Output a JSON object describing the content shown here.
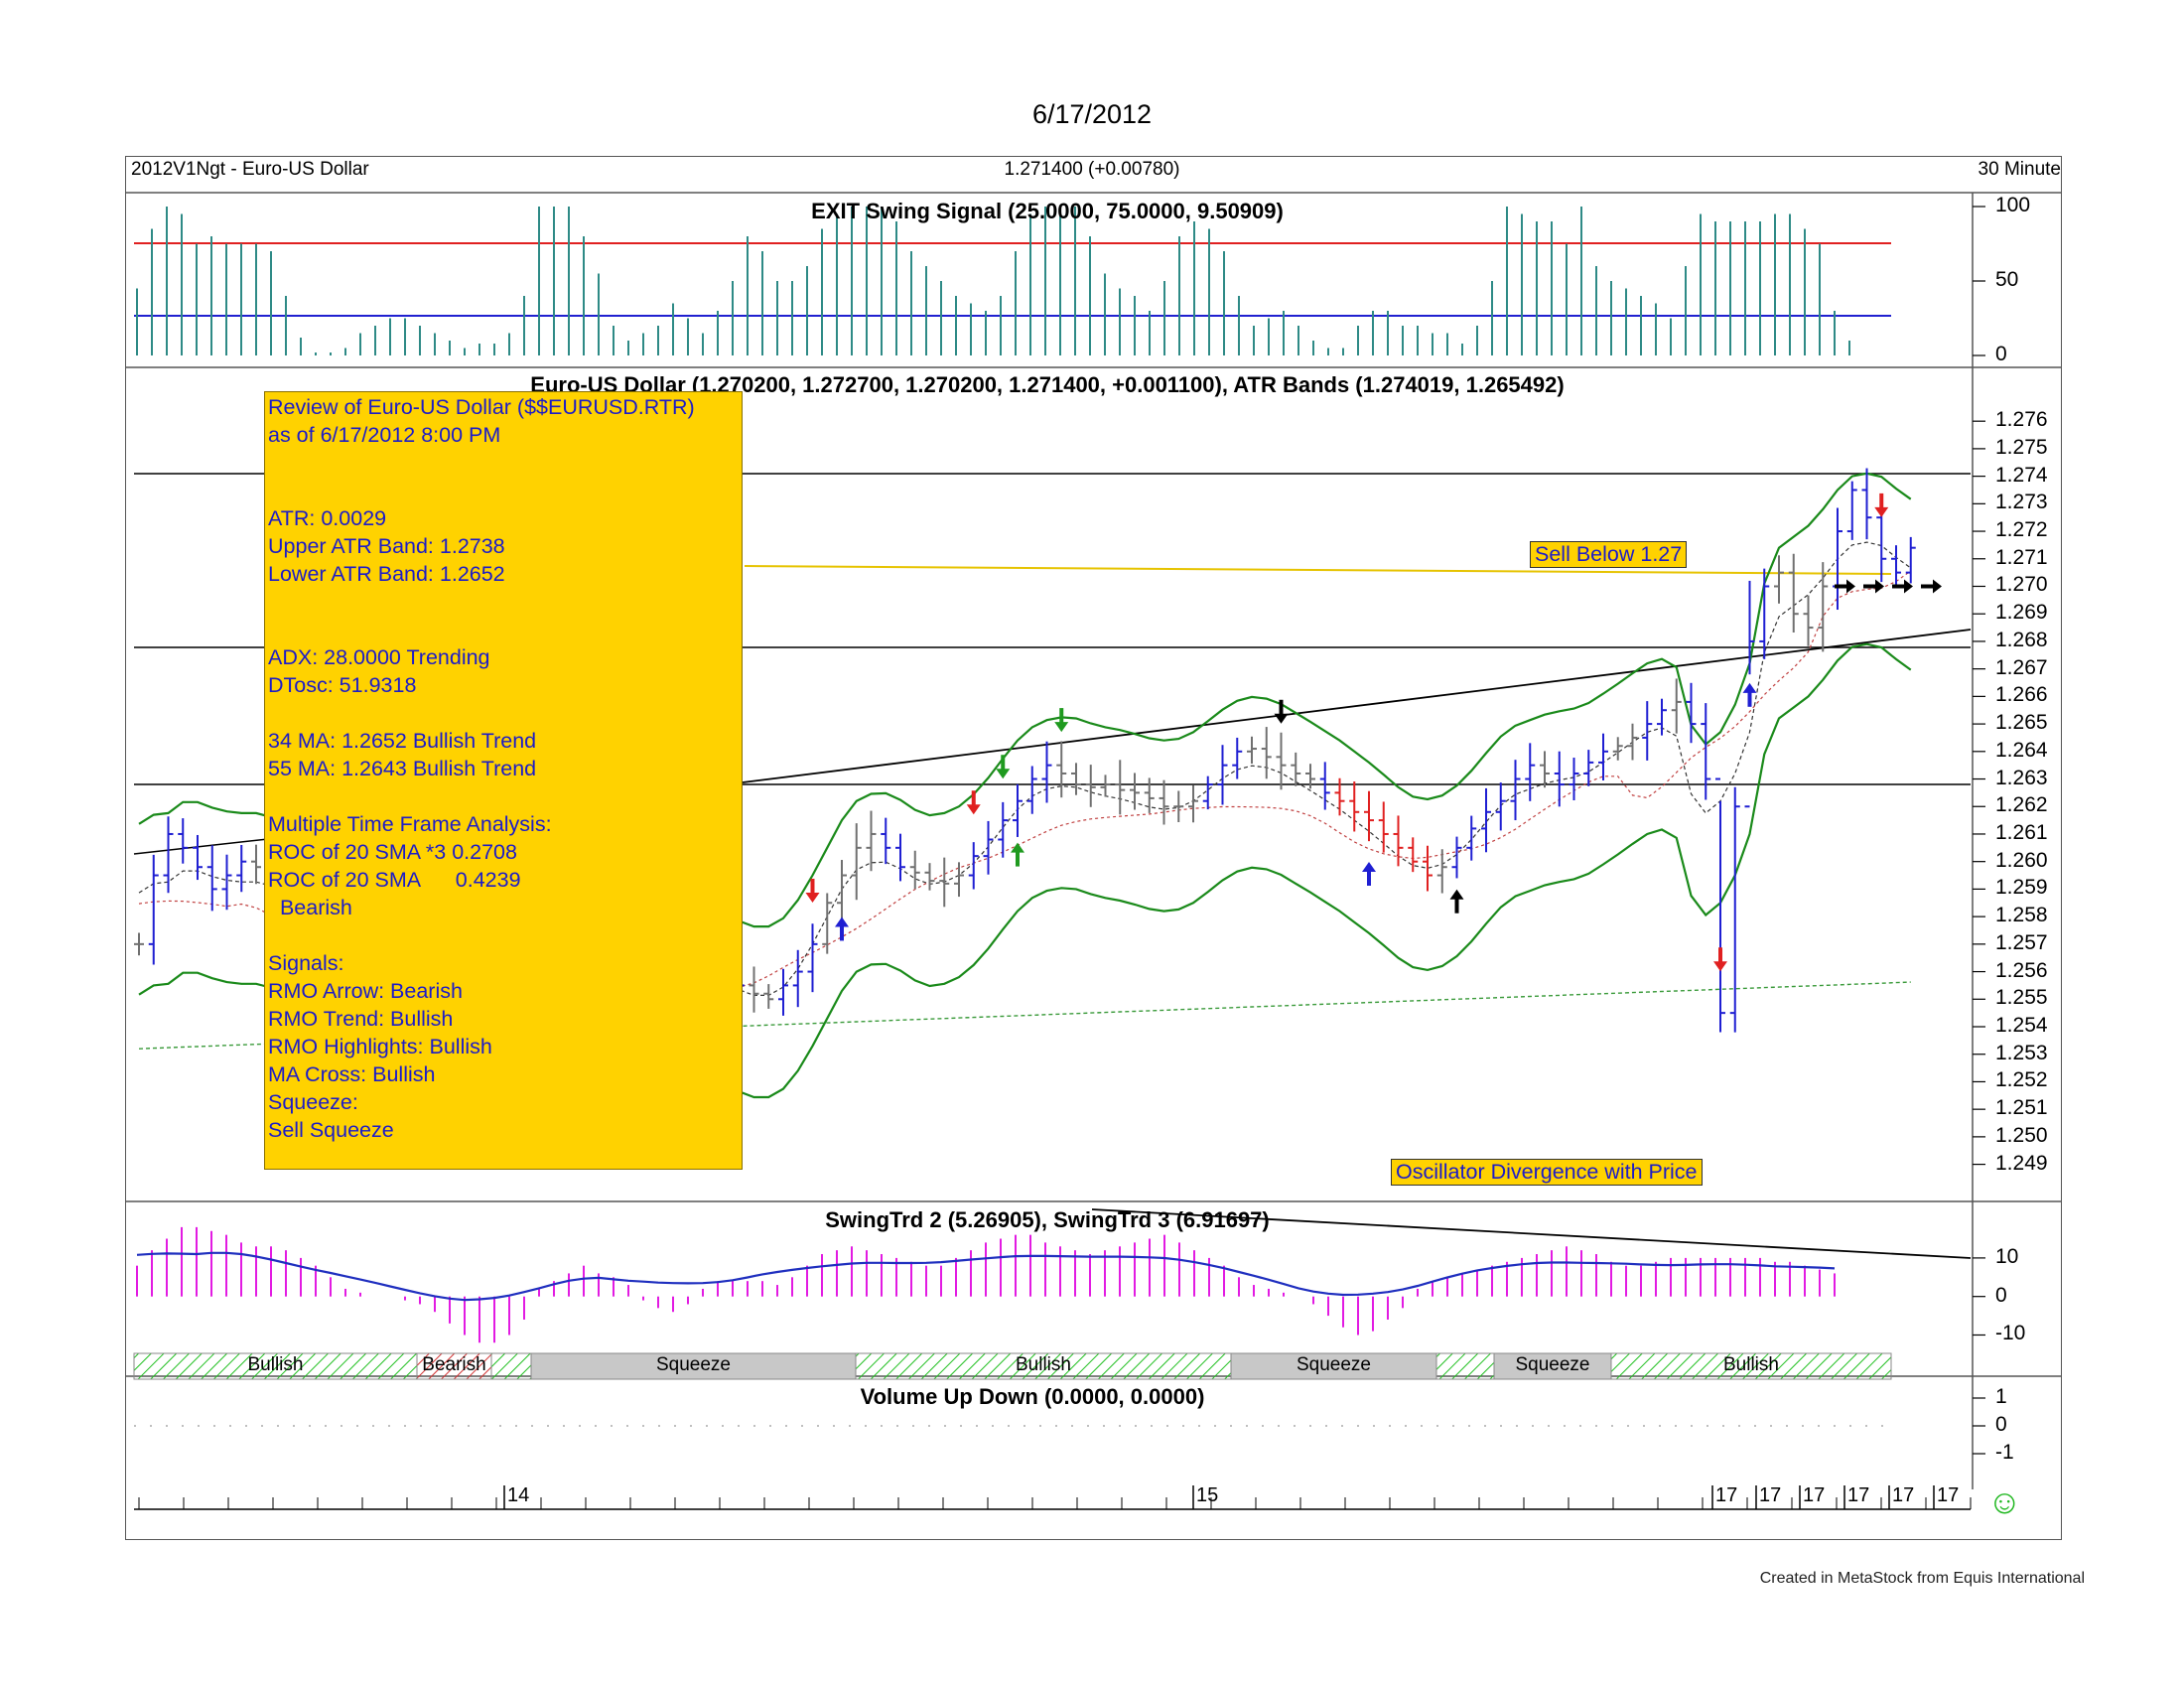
{
  "page_title": "6/17/2012",
  "header": {
    "left": "2012V1Ngt - Euro-US Dollar",
    "center": "1.271400 (+0.00780)",
    "right": "30 Minute"
  },
  "panels": {
    "exit": {
      "title": "EXIT Swing Signal (25.0000, 75.0000, 9.50909)"
    },
    "price": {
      "title": "Euro-US Dollar (1.270200, 1.272700, 1.270200, 1.271400, +0.001100), ATR Bands (1.274019, 1.265492)"
    },
    "swing": {
      "title": "SwingTrd 2 (5.26905), SwingTrd 3 (6.91697)"
    },
    "volume": {
      "title": "Volume Up Down (0.0000, 0.0000)"
    }
  },
  "info_box": {
    "lines": [
      "Review of Euro-US Dollar ($$EURUSD.RTR)",
      "as of 6/17/2012 8:00 PM",
      "",
      "",
      "ATR: 0.0029",
      "Upper ATR Band: 1.2738",
      "Lower ATR Band: 1.2652",
      "",
      "",
      "ADX: 28.0000 Trending",
      "DTosc: 51.9318",
      "",
      "34 MA: 1.2652 Bullish Trend",
      "55 MA: 1.2643 Bullish Trend",
      "",
      "Multiple Time Frame Analysis:",
      "ROC of 20 SMA *3 0.2708",
      "ROC of 20 SMA      0.4239",
      "  Bearish",
      "",
      "Signals:",
      "RMO Arrow: Bearish",
      "RMO Trend: Bullish",
      "RMO Highlights: Bullish",
      "MA Cross: Bullish",
      "Squeeze:",
      "Sell Squeeze"
    ]
  },
  "callouts": {
    "sell_below": "Sell Below 1.27",
    "divergence": "Oscillator Divergence with Price"
  },
  "footer": "Created in MetaStock from Equis International",
  "smiley": "☺",
  "colors": {
    "info_box_bg": "#FFD200",
    "text_blue": "#1c1cc8",
    "bar_up": "#1f1fd2",
    "bar_down": "#e02020",
    "bar_neutral": "#707070",
    "atr_band": "#1a8a1a",
    "exit_bar": "#2e8a86",
    "swing_hist": "#e21be2",
    "swing_line": "#1f2fbf",
    "hatch": "#1fbf1f",
    "squeeze_fill": "#c8c8c8",
    "ma_line": "#e6c300"
  },
  "chart_data": [
    {
      "type": "bar",
      "name": "EXIT Swing Signal",
      "y_ticks": [
        100,
        50,
        0
      ],
      "ylim": [
        0,
        100
      ],
      "levels": [
        75,
        25
      ],
      "values": [
        45,
        85,
        100,
        95,
        75,
        80,
        75,
        75,
        75,
        70,
        40,
        12,
        2,
        2,
        5,
        15,
        20,
        25,
        25,
        20,
        15,
        10,
        5,
        8,
        8,
        15,
        40,
        100,
        100,
        100,
        80,
        55,
        20,
        10,
        15,
        20,
        35,
        25,
        15,
        30,
        50,
        80,
        70,
        50,
        50,
        60,
        85,
        95,
        100,
        100,
        100,
        90,
        70,
        60,
        50,
        40,
        35,
        30,
        40,
        70,
        95,
        100,
        100,
        100,
        80,
        55,
        45,
        40,
        30,
        50,
        80,
        90,
        85,
        70,
        40,
        20,
        25,
        30,
        20,
        10,
        5,
        5,
        20,
        30,
        30,
        20,
        20,
        15,
        15,
        8,
        20,
        50,
        100,
        95,
        90,
        90,
        75,
        100,
        60,
        50,
        45,
        40,
        35,
        25,
        60,
        95,
        90,
        90,
        90,
        90,
        95,
        95,
        85,
        75,
        30,
        10
      ]
    },
    {
      "type": "ohlc",
      "name": "Euro-US Dollar",
      "y_ticks": [
        1.276,
        1.275,
        1.274,
        1.273,
        1.272,
        1.271,
        1.27,
        1.269,
        1.268,
        1.267,
        1.266,
        1.265,
        1.264,
        1.263,
        1.262,
        1.261,
        1.26,
        1.259,
        1.258,
        1.257,
        1.256,
        1.255,
        1.254,
        1.253,
        1.252,
        1.251,
        1.25,
        1.249
      ],
      "ylim": [
        1.2483,
        1.2768
      ],
      "horizontal_levels": [
        1.2735,
        1.2673,
        1.2625
      ],
      "sell_level": 1.27,
      "x_ticks": [
        "14",
        "15",
        "17",
        "17",
        "17",
        "17",
        "17",
        "17"
      ],
      "close": [
        1.257,
        1.2595,
        1.261,
        1.2605,
        1.2598,
        1.259,
        1.2595,
        1.26,
        1.2598,
        1.2595,
        1.259,
        1.2588,
        1.2585,
        1.258,
        1.2578,
        1.2575,
        1.257,
        1.2565,
        1.256,
        1.2562,
        1.2565,
        1.257,
        1.2575,
        1.258,
        1.2582,
        1.2585,
        1.259,
        1.2592,
        1.2595,
        1.2598,
        1.2595,
        1.259,
        1.2588,
        1.2585,
        1.258,
        1.2575,
        1.2572,
        1.257,
        1.2568,
        1.2565,
        1.256,
        1.2555,
        1.2552,
        1.255,
        1.2555,
        1.256,
        1.257,
        1.2585,
        1.2595,
        1.2605,
        1.261,
        1.2605,
        1.2598,
        1.2596,
        1.2593,
        1.2592,
        1.2595,
        1.2602,
        1.2608,
        1.2615,
        1.2622,
        1.263,
        1.2635,
        1.2632,
        1.2628,
        1.2627,
        1.2628,
        1.2626,
        1.2625,
        1.2623,
        1.262,
        1.262,
        1.2622,
        1.2628,
        1.2635,
        1.264,
        1.2641,
        1.2638,
        1.2635,
        1.2632,
        1.263,
        1.2625,
        1.2622,
        1.2618,
        1.2615,
        1.261,
        1.2605,
        1.26,
        1.2595,
        1.2598,
        1.2605,
        1.2612,
        1.2618,
        1.2622,
        1.263,
        1.2635,
        1.2632,
        1.2628,
        1.2632,
        1.2636,
        1.264,
        1.2642,
        1.2645,
        1.265,
        1.2655,
        1.2658,
        1.265,
        1.263,
        1.2545,
        1.262,
        1.268,
        1.27,
        1.2705,
        1.269,
        1.2685,
        1.27,
        1.272,
        1.2735,
        1.2725,
        1.271,
        1.2705,
        1.2714
      ]
    },
    {
      "type": "bar",
      "name": "SwingTrd 2 / SwingTrd 3",
      "y_ticks": [
        10,
        0,
        -10
      ],
      "ylim": [
        -14,
        19
      ],
      "histogram": [
        8,
        12,
        15,
        18,
        18,
        17,
        16,
        14,
        13,
        13,
        12,
        10,
        8,
        5,
        2,
        1,
        0,
        0,
        -1,
        -2,
        -4,
        -7,
        -10,
        -12,
        -12,
        -10,
        -6,
        2,
        4,
        6,
        8,
        6,
        5,
        3,
        -1,
        -3,
        -4,
        -2,
        2,
        4,
        4,
        4,
        4,
        3,
        5,
        8,
        11,
        12,
        13,
        12,
        11,
        10,
        9,
        8,
        8,
        10,
        12,
        14,
        15,
        16,
        16,
        14,
        13,
        12,
        11,
        12,
        13,
        14,
        15,
        16,
        14,
        12,
        10,
        8,
        5,
        3,
        2,
        1,
        0,
        -2,
        -5,
        -8,
        -10,
        -9,
        -6,
        -3,
        2,
        4,
        5,
        6,
        7,
        8,
        9,
        10,
        11,
        12,
        13,
        12,
        11,
        9,
        8,
        8,
        9,
        10,
        10,
        10,
        10,
        10,
        10,
        10,
        9,
        9,
        8,
        7,
        6
      ]
    },
    {
      "type": "bar",
      "name": "Volume Up Down",
      "y_ticks": [
        1,
        0,
        -1
      ]
    }
  ],
  "signal_bands": [
    {
      "label": "Bullish",
      "kind": "hatch"
    },
    {
      "label": "Bearish",
      "kind": "hatch-red"
    },
    {
      "label": "Squeeze",
      "kind": "gray"
    },
    {
      "label": "Bullish",
      "kind": "hatch"
    },
    {
      "label": "Squeeze",
      "kind": "gray"
    },
    {
      "label": "Squeeze",
      "kind": "gray"
    },
    {
      "label": "Bullish",
      "kind": "hatch"
    }
  ]
}
